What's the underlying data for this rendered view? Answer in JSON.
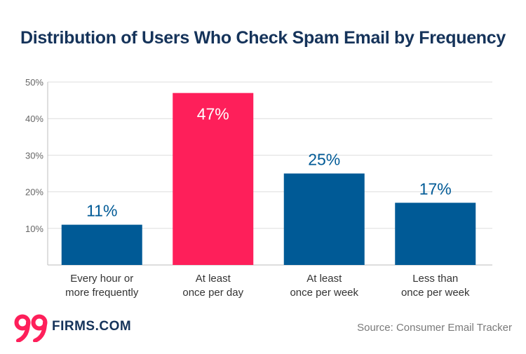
{
  "chart_data": {
    "type": "bar",
    "title": "Distribution of Users Who Check Spam Email by Frequency",
    "categories": [
      [
        "Every hour or",
        "more frequently"
      ],
      [
        "At least",
        "once per day"
      ],
      [
        "At least",
        "once per week"
      ],
      [
        "Less than",
        "once per week"
      ]
    ],
    "values": [
      11,
      47,
      25,
      17
    ],
    "value_labels": [
      "11%",
      "47%",
      "25%",
      "17%"
    ],
    "highlight_index": 1,
    "ylim": [
      0,
      50
    ],
    "yticks": [
      10,
      20,
      30,
      40,
      50
    ],
    "ytick_labels": [
      "10%",
      "20%",
      "30%",
      "40%",
      "50%"
    ],
    "grid": true,
    "colors": {
      "bar": "#005a96",
      "highlight": "#fe1f5a",
      "label": "#005a96",
      "highlight_label": "#ffffff"
    }
  },
  "branding": {
    "logo_mark": "99",
    "logo_text": "FIRMS.COM",
    "logo_color": "#fe1f5a"
  },
  "source": "Source: Consumer Email Tracker"
}
